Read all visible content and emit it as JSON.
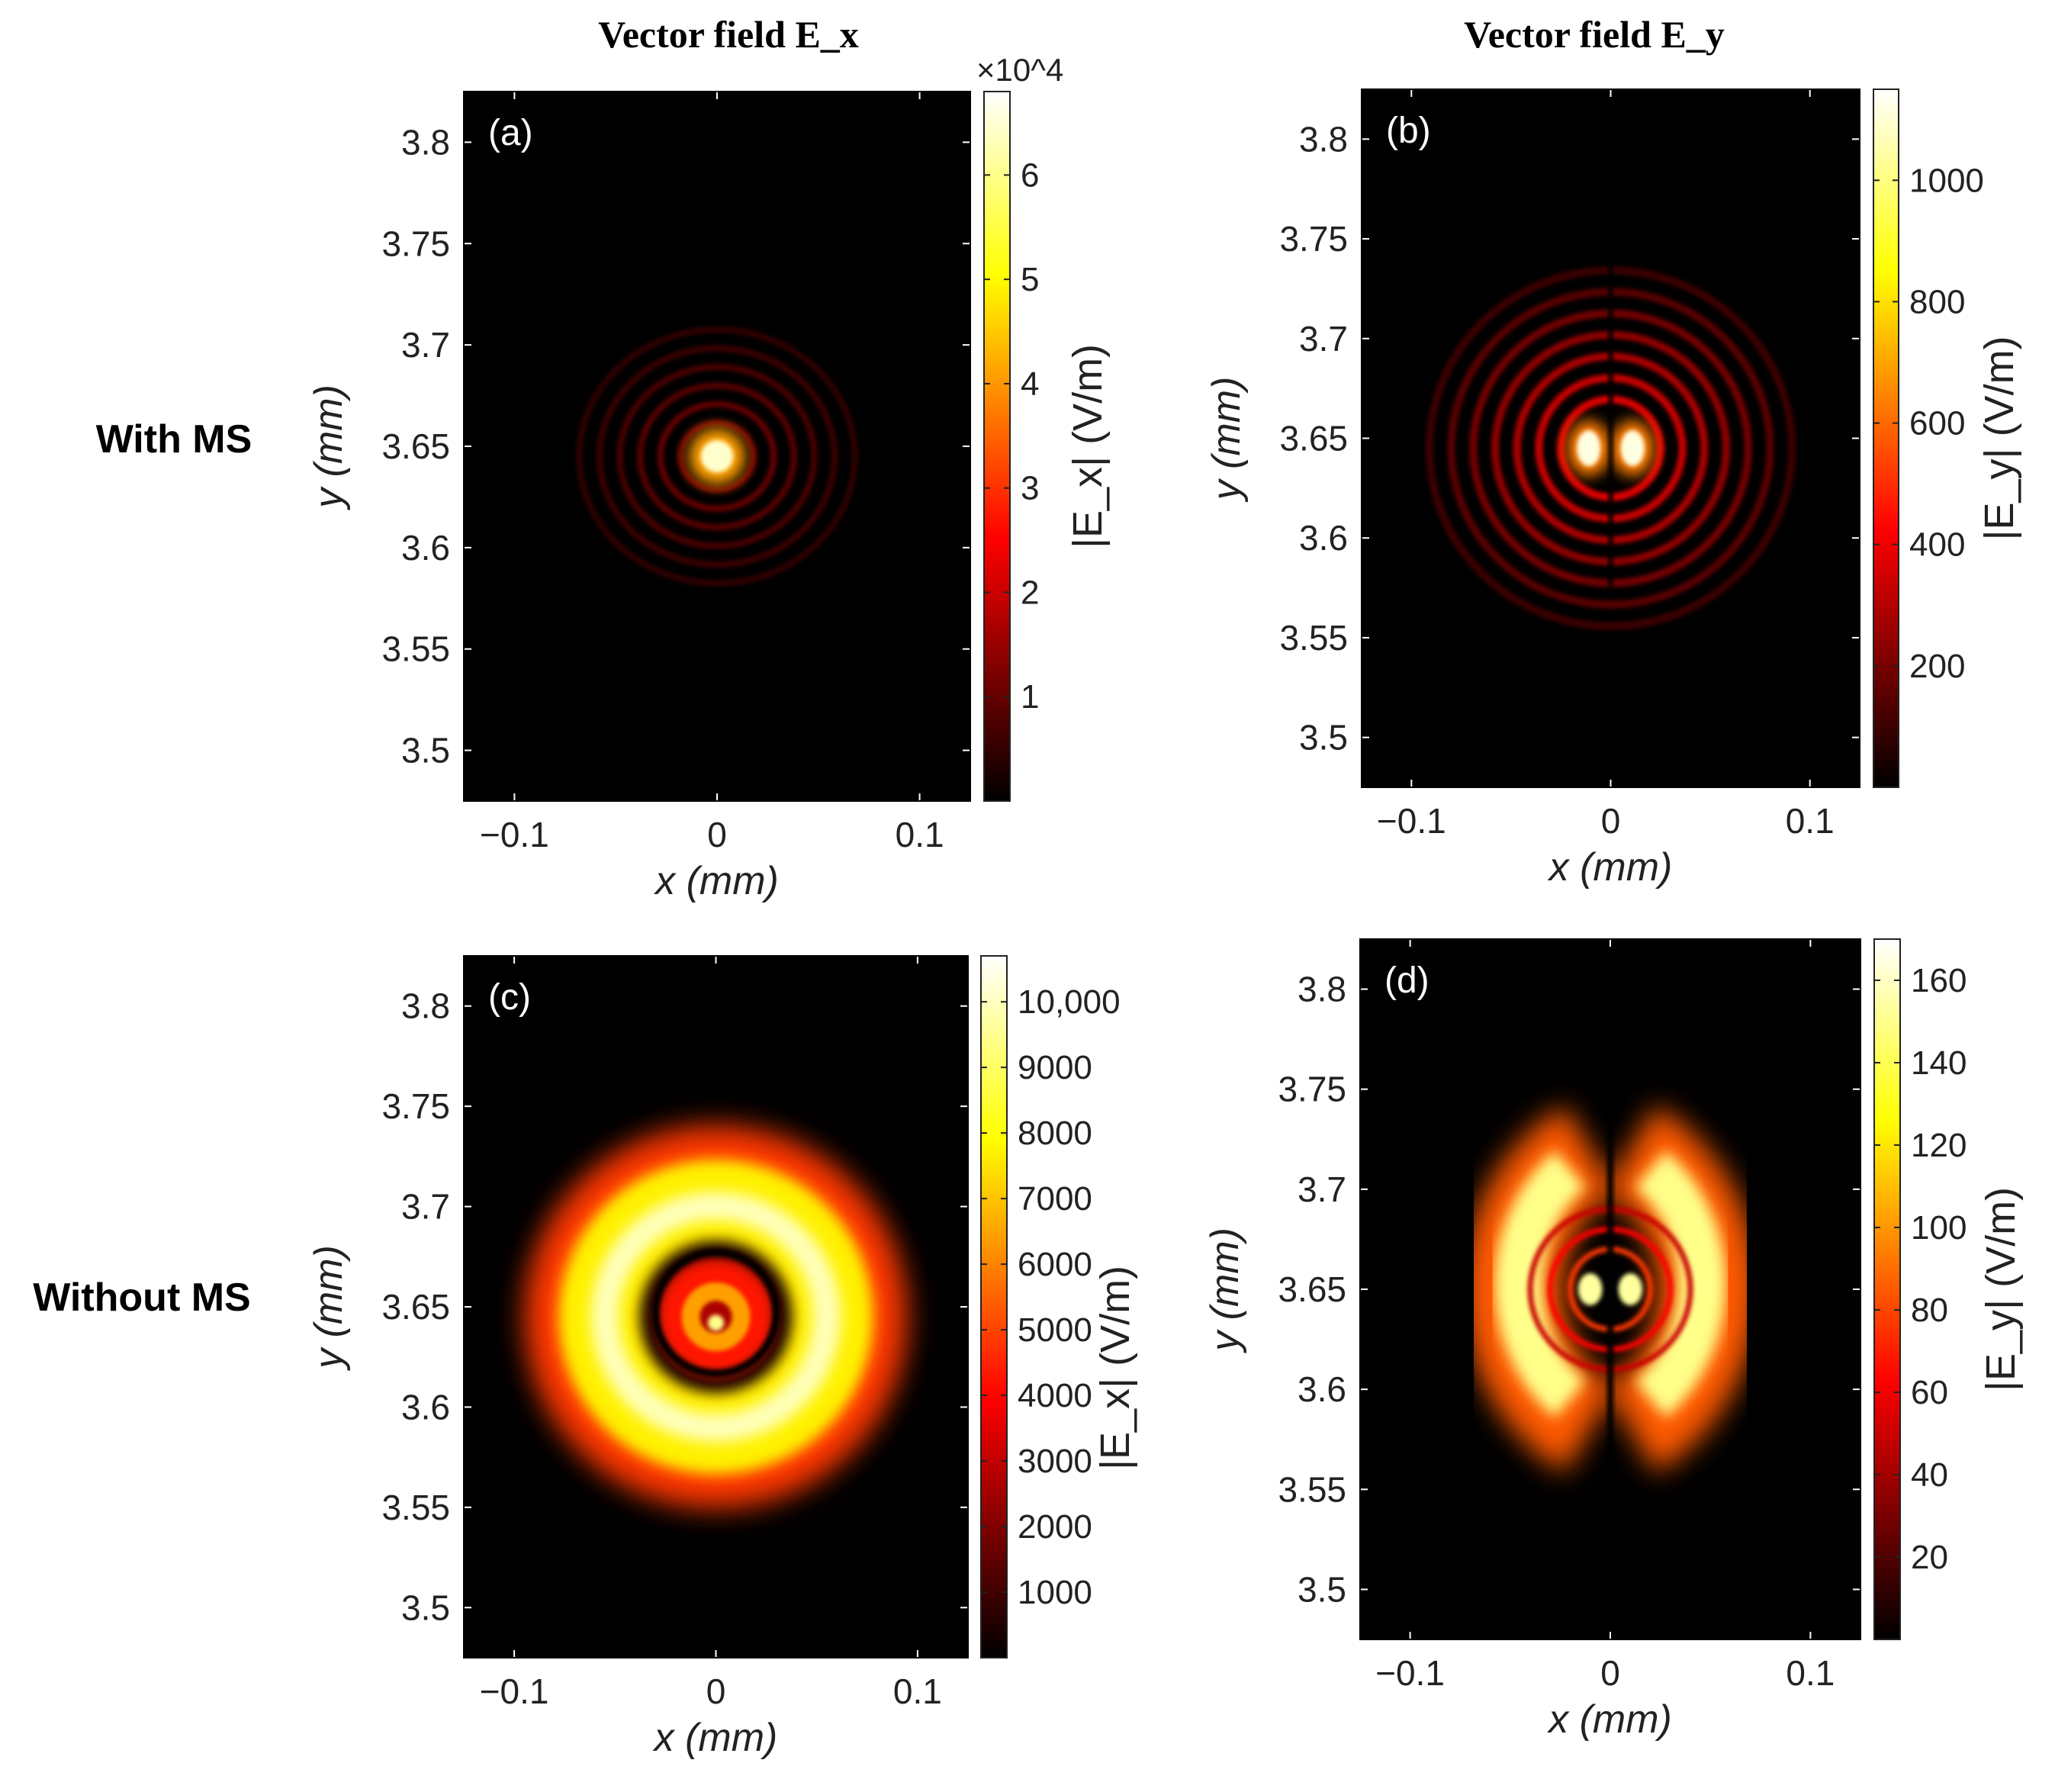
{
  "column_titles": [
    "Vector field E_x",
    "Vector field E_y"
  ],
  "row_labels": [
    "With MS",
    "Without MS"
  ],
  "chart_data": [
    {
      "type": "heatmap",
      "panel": "(a)",
      "xlabel": "x (mm)",
      "ylabel": "y (mm)",
      "xlim": [
        -0.125,
        0.125
      ],
      "ylim": [
        3.475,
        3.825
      ],
      "xticks": [
        -0.1,
        0,
        0.1
      ],
      "xtick_labels": [
        "−0.1",
        "0",
        "0.1"
      ],
      "yticks": [
        3.5,
        3.55,
        3.6,
        3.65,
        3.7,
        3.75,
        3.8
      ],
      "ytick_labels": [
        "3.5",
        "3.55",
        "3.6",
        "3.65",
        "3.7",
        "3.75",
        "3.8"
      ],
      "colorbar": {
        "label": "|E_x| (V/m)",
        "range": [
          0,
          68000
        ],
        "ticks": [
          10000,
          20000,
          30000,
          40000,
          50000,
          60000
        ],
        "tick_labels": [
          "1",
          "2",
          "3",
          "4",
          "5",
          "6"
        ],
        "multiplier": "×10^4",
        "colormap": "hot"
      },
      "field": {
        "center": [
          0,
          3.645
        ],
        "peak": 68000,
        "pattern": "central bright spot with faint concentric rings"
      }
    },
    {
      "type": "heatmap",
      "panel": "(b)",
      "xlabel": "x (mm)",
      "ylabel": "y (mm)",
      "xlim": [
        -0.125,
        0.125
      ],
      "ylim": [
        3.475,
        3.825
      ],
      "xticks": [
        -0.1,
        0,
        0.1
      ],
      "xtick_labels": [
        "−0.1",
        "0",
        "0.1"
      ],
      "yticks": [
        3.5,
        3.55,
        3.6,
        3.65,
        3.7,
        3.75,
        3.8
      ],
      "ytick_labels": [
        "3.5",
        "3.55",
        "3.6",
        "3.65",
        "3.7",
        "3.75",
        "3.8"
      ],
      "colorbar": {
        "label": "|E_y| (V/m)",
        "range": [
          0,
          1150
        ],
        "ticks": [
          200,
          400,
          600,
          800,
          1000
        ],
        "tick_labels": [
          "200",
          "400",
          "600",
          "800",
          "1000"
        ],
        "colormap": "hot"
      },
      "field": {
        "center": [
          0,
          3.645
        ],
        "peak": 1150,
        "pattern": "two bright lobes split by a dark vertical line, concentric rings"
      }
    },
    {
      "type": "heatmap",
      "panel": "(c)",
      "xlabel": "x (mm)",
      "ylabel": "y (mm)",
      "xlim": [
        -0.125,
        0.125
      ],
      "ylim": [
        3.475,
        3.825
      ],
      "xticks": [
        -0.1,
        0,
        0.1
      ],
      "xtick_labels": [
        "−0.1",
        "0",
        "0.1"
      ],
      "yticks": [
        3.5,
        3.55,
        3.6,
        3.65,
        3.7,
        3.75,
        3.8
      ],
      "ytick_labels": [
        "3.5",
        "3.55",
        "3.6",
        "3.65",
        "3.7",
        "3.75",
        "3.8"
      ],
      "colorbar": {
        "label": "|E_x| (V/m)",
        "range": [
          0,
          10700
        ],
        "ticks": [
          1000,
          2000,
          3000,
          4000,
          5000,
          6000,
          7000,
          8000,
          9000,
          10000
        ],
        "tick_labels": [
          "1000",
          "2000",
          "3000",
          "4000",
          "5000",
          "6000",
          "7000",
          "8000",
          "9000",
          "10,000"
        ],
        "colormap": "hot"
      },
      "field": {
        "center": [
          0,
          3.645
        ],
        "peak": 10700,
        "pattern": "wide bright annulus with dark inner ring and small central spot"
      }
    },
    {
      "type": "heatmap",
      "panel": "(d)",
      "xlabel": "x (mm)",
      "ylabel": "y (mm)",
      "xlim": [
        -0.125,
        0.125
      ],
      "ylim": [
        3.475,
        3.825
      ],
      "xticks": [
        -0.1,
        0,
        0.1
      ],
      "xtick_labels": [
        "−0.1",
        "0",
        "0.1"
      ],
      "yticks": [
        3.5,
        3.55,
        3.6,
        3.65,
        3.7,
        3.75,
        3.8
      ],
      "ytick_labels": [
        "3.5",
        "3.55",
        "3.6",
        "3.65",
        "3.7",
        "3.75",
        "3.8"
      ],
      "colorbar": {
        "label": "|E_y| (V/m)",
        "range": [
          0,
          170
        ],
        "ticks": [
          20,
          40,
          60,
          80,
          100,
          120,
          140,
          160
        ],
        "tick_labels": [
          "20",
          "40",
          "60",
          "80",
          "100",
          "120",
          "140",
          "160"
        ],
        "colormap": "hot"
      },
      "field": {
        "center": [
          0,
          3.65
        ],
        "peak": 170,
        "pattern": "two bright crescents left and right, dark vertical line, small central lobes"
      }
    }
  ]
}
